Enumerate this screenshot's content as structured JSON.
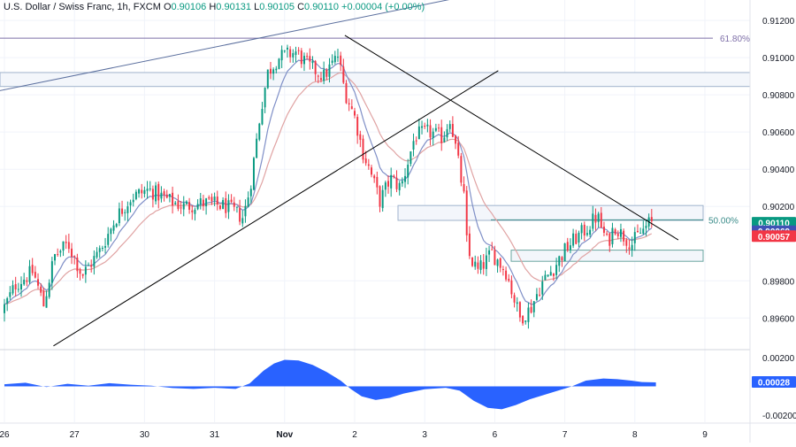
{
  "header": {
    "symbol": "U.S. Dollar / Swiss Franc, 1h, FXCM",
    "open_label": "O",
    "open": "0.90106",
    "high_label": "H",
    "high": "0.90131",
    "low_label": "L",
    "low": "0.90105",
    "close_label": "C",
    "close": "0.90110",
    "change": "+0.00004 (+0.00%)"
  },
  "colors": {
    "up": "#089981",
    "down": "#f23645",
    "ma_fast": "#7f8fc7",
    "ma_slow": "#e0a3a3",
    "osc": "#2962ff",
    "trend": "#000000",
    "upper_channel": "#5b6f9e",
    "fib_line": "#7e6fa8",
    "fib50": "#3b8c8a",
    "zone_fill": "#f3f6fb",
    "zone_stroke": "#9fb3cc",
    "zone2_stroke": "#6aa5a0"
  },
  "price_axis": {
    "ticks": [
      "0.91200",
      "0.91000",
      "0.90800",
      "0.90600",
      "0.90400",
      "0.90200",
      "0.89800",
      "0.89600"
    ],
    "tick_values": [
      0.912,
      0.91,
      0.908,
      0.906,
      0.904,
      0.902,
      0.898,
      0.896
    ],
    "range": [
      0.8943,
      0.9131
    ]
  },
  "osc_axis": {
    "ticks": [
      "0.00200",
      "-0.00200"
    ],
    "tick_values": [
      0.002,
      -0.002
    ],
    "range": [
      -0.0025,
      0.0025
    ]
  },
  "time_axis": {
    "labels": [
      "26",
      "27",
      "30",
      "31",
      "Nov",
      "2",
      "3",
      "6",
      "7",
      "8",
      "9"
    ],
    "positions": [
      0,
      1,
      2,
      3,
      4,
      5,
      6,
      7,
      8,
      9,
      10
    ]
  },
  "price_labels": {
    "current": "0.90110",
    "ma_fast": "0.90069",
    "ma_slow": "0.90057",
    "current_value": 0.9011,
    "ma_fast_value": 0.90069,
    "ma_slow_value": 0.90057,
    "osc": "0.00028",
    "osc_value": 0.00028
  },
  "fib": {
    "level_618_label": "61.80%",
    "level_618_price": 0.91105,
    "level_50_label": "50.00%",
    "level_50_price": 0.90128
  },
  "chart_data": {
    "type": "candlestick",
    "title": "U.S. Dollar / Swiss Franc, 1h, FXCM",
    "series_close_path": [
      [
        0.0,
        0.8963
      ],
      [
        0.2,
        0.8978
      ],
      [
        0.45,
        0.8985
      ],
      [
        0.6,
        0.8967
      ],
      [
        0.75,
        0.8993
      ],
      [
        0.95,
        0.9
      ],
      [
        1.15,
        0.8983
      ],
      [
        1.4,
        0.8996
      ],
      [
        1.65,
        0.9015
      ],
      [
        1.85,
        0.9025
      ],
      [
        2.1,
        0.9029
      ],
      [
        2.4,
        0.9023
      ],
      [
        2.6,
        0.902
      ],
      [
        2.9,
        0.9022
      ],
      [
        3.2,
        0.902
      ],
      [
        3.45,
        0.9014
      ],
      [
        3.55,
        0.9031
      ],
      [
        3.7,
        0.9072
      ],
      [
        3.8,
        0.9092
      ],
      [
        3.95,
        0.91
      ],
      [
        4.2,
        0.9103
      ],
      [
        4.4,
        0.9095
      ],
      [
        4.6,
        0.909
      ],
      [
        4.8,
        0.9101
      ],
      [
        4.9,
        0.9082
      ],
      [
        5.05,
        0.9067
      ],
      [
        5.15,
        0.905
      ],
      [
        5.25,
        0.904
      ],
      [
        5.4,
        0.9023
      ],
      [
        5.55,
        0.9035
      ],
      [
        5.7,
        0.903
      ],
      [
        5.9,
        0.9058
      ],
      [
        6.1,
        0.906
      ],
      [
        6.3,
        0.9057
      ],
      [
        6.4,
        0.9068
      ],
      [
        6.5,
        0.9048
      ],
      [
        6.6,
        0.9025
      ],
      [
        6.65,
        0.8995
      ],
      [
        6.8,
        0.8985
      ],
      [
        7.0,
        0.8995
      ],
      [
        7.2,
        0.8985
      ],
      [
        7.4,
        0.896
      ],
      [
        7.55,
        0.8965
      ],
      [
        7.7,
        0.8978
      ],
      [
        7.9,
        0.8988
      ],
      [
        8.05,
        0.8997
      ],
      [
        8.2,
        0.9003
      ],
      [
        8.35,
        0.9008
      ],
      [
        8.5,
        0.9015
      ],
      [
        8.65,
        0.9
      ],
      [
        8.75,
        0.901
      ],
      [
        8.85,
        0.9005
      ],
      [
        9.0,
        0.9
      ],
      [
        9.1,
        0.9005
      ],
      [
        9.25,
        0.9011
      ]
    ],
    "fib_levels": [
      {
        "label": "61.80%",
        "price": 0.91105
      },
      {
        "label": "50.00%",
        "price": 0.90128
      }
    ],
    "zones": [
      {
        "from": 0.9092,
        "to": 0.90845
      },
      {
        "from": 0.90205,
        "to": 0.90125
      },
      {
        "from": 0.89965,
        "to": 0.89905
      }
    ],
    "trendlines": [
      {
        "name": "upper channel",
        "p1": [
          -0.1,
          0.9082
        ],
        "p2": [
          7.5,
          0.914
        ]
      },
      {
        "name": "rising support",
        "p1": [
          0.7,
          0.8945
        ],
        "p2": [
          7.05,
          0.9093
        ]
      },
      {
        "name": "descending resistance",
        "p1": [
          4.86,
          0.9112
        ],
        "p2": [
          9.62,
          0.9002
        ]
      }
    ],
    "oscillator": {
      "type": "area",
      "values": [
        [
          0.0,
          0.00015
        ],
        [
          0.3,
          0.00025
        ],
        [
          0.6,
          -5e-05
        ],
        [
          0.9,
          0.00018
        ],
        [
          1.2,
          5e-05
        ],
        [
          1.5,
          0.00022
        ],
        [
          1.8,
          0.00012
        ],
        [
          2.1,
          5e-05
        ],
        [
          2.4,
          -0.00012
        ],
        [
          2.7,
          -0.00018
        ],
        [
          3.0,
          -0.0001
        ],
        [
          3.3,
          -0.00018
        ],
        [
          3.5,
          0.0002
        ],
        [
          3.7,
          0.0011
        ],
        [
          3.85,
          0.0016
        ],
        [
          4.0,
          0.00185
        ],
        [
          4.2,
          0.0018
        ],
        [
          4.4,
          0.0015
        ],
        [
          4.6,
          0.001
        ],
        [
          4.8,
          0.0004
        ],
        [
          4.95,
          -0.0002
        ],
        [
          5.1,
          -0.0007
        ],
        [
          5.3,
          -0.00095
        ],
        [
          5.5,
          -0.0008
        ],
        [
          5.7,
          -0.0005
        ],
        [
          6.0,
          -0.0002
        ],
        [
          6.3,
          -0.0001
        ],
        [
          6.5,
          -0.0003
        ],
        [
          6.7,
          -0.001
        ],
        [
          6.9,
          -0.0015
        ],
        [
          7.1,
          -0.0016
        ],
        [
          7.3,
          -0.0013
        ],
        [
          7.5,
          -0.0009
        ],
        [
          7.7,
          -0.0006
        ],
        [
          7.9,
          -0.0003
        ],
        [
          8.1,
          0.0
        ],
        [
          8.3,
          0.0004
        ],
        [
          8.55,
          0.00055
        ],
        [
          8.75,
          0.0005
        ],
        [
          8.95,
          0.0004
        ],
        [
          9.1,
          0.0003
        ],
        [
          9.3,
          0.00028
        ]
      ],
      "ticks": [
        "0.00200",
        "-0.00200"
      ]
    },
    "x_labels": [
      "26",
      "27",
      "30",
      "31",
      "Nov",
      "2",
      "3",
      "6",
      "7",
      "8",
      "9"
    ]
  }
}
